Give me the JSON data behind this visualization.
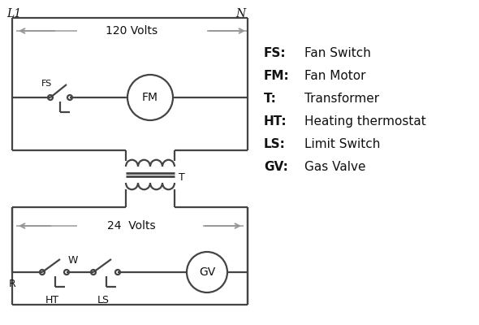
{
  "bg_color": "#ffffff",
  "line_color": "#444444",
  "text_color": "#111111",
  "line_width": 1.6,
  "legend_items": [
    [
      "FS:",
      "Fan Switch"
    ],
    [
      "FM:",
      "Fan Motor"
    ],
    [
      "T:",
      "Transformer"
    ],
    [
      "HT:",
      "Heating thermostat"
    ],
    [
      "LS:",
      "Limit Switch"
    ],
    [
      "GV:",
      "Gas Valve"
    ]
  ],
  "L1_label": "L1",
  "N_label": "N",
  "volts120_label": "120 Volts",
  "volts24_label": "24  Volts",
  "T_label": "T",
  "R_label": "R",
  "W_label": "W",
  "FS_label": "FS",
  "FM_label": "FM",
  "HT_label": "HT",
  "LS_label": "LS",
  "GV_label": "GV"
}
